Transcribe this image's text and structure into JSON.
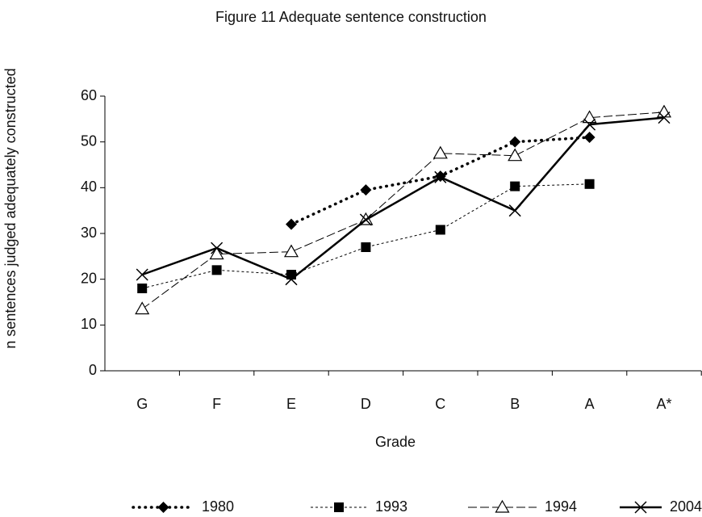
{
  "chart_data": {
    "type": "line",
    "title": "Figure 11   Adequate sentence construction",
    "x_label": "Grade",
    "y_label": "n  sentences judged adequately constructed",
    "categories": [
      "G",
      "F",
      "E",
      "D",
      "C",
      "B",
      "A",
      "A*"
    ],
    "series": [
      {
        "name": "1980",
        "color": "#000000",
        "line_style": "dotted",
        "marker": "diamond",
        "values": [
          null,
          null,
          32,
          39.5,
          42.5,
          50,
          51,
          null
        ]
      },
      {
        "name": "1993",
        "color": "#000000",
        "line_style": "dashed",
        "marker": "square",
        "values": [
          18,
          22,
          21,
          27,
          30.8,
          40.3,
          40.8,
          null
        ]
      },
      {
        "name": "1994",
        "color": "#000000",
        "line_style": "longdash",
        "marker": "triangle",
        "values": [
          13.5,
          25.5,
          26,
          33,
          47.5,
          47,
          55.3,
          56.5
        ]
      },
      {
        "name": "2004",
        "color": "#000000",
        "line_style": "solid",
        "marker": "cross",
        "values": [
          21,
          26.8,
          20,
          33,
          42.3,
          35,
          53.8,
          55.3
        ]
      }
    ],
    "ylim": [
      0,
      60
    ],
    "yticks": [
      0,
      10,
      20,
      30,
      40,
      50,
      60
    ],
    "grid": false,
    "legend": "bottom"
  }
}
